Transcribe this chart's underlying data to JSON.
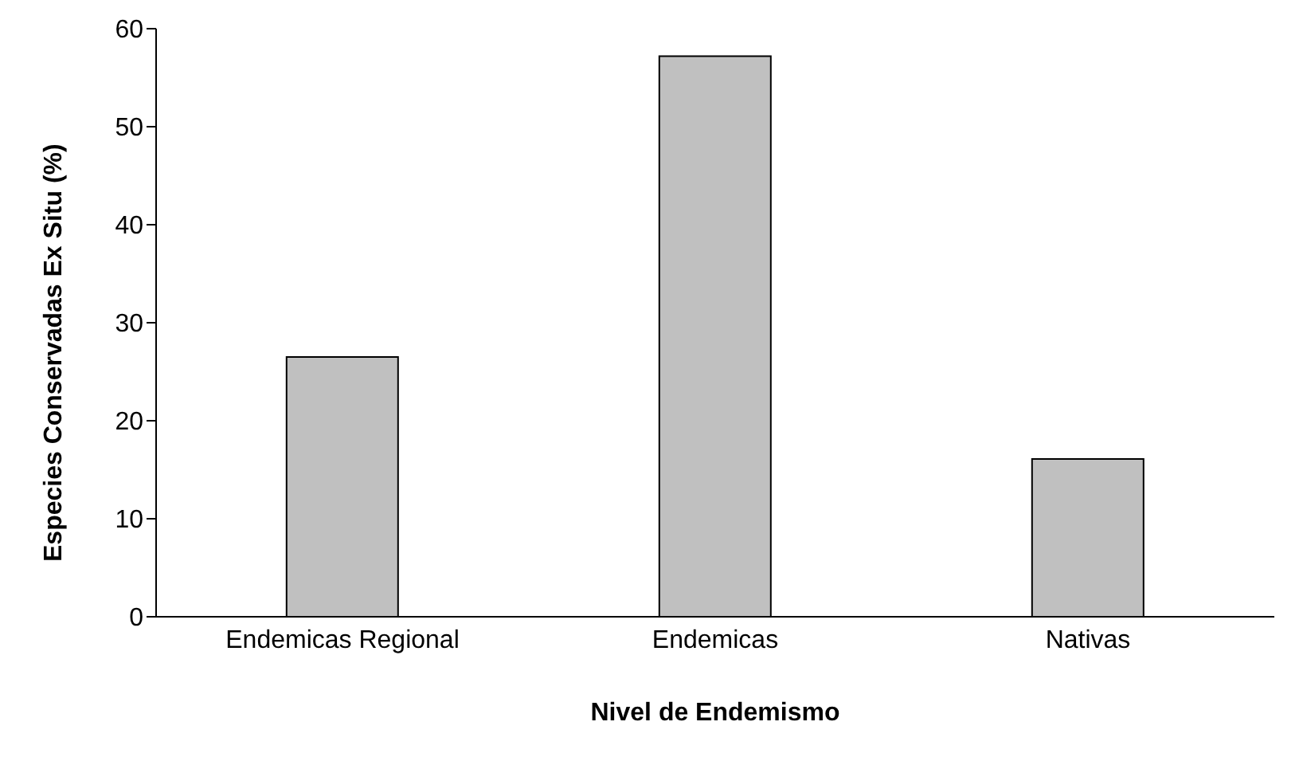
{
  "chart_data": {
    "type": "bar",
    "xlabel": "Nivel de Endemismo",
    "ylabel": "Especies Conservadas Ex Situ (%)",
    "categories": [
      "Endemicas Regional",
      "Endemicas",
      "Nativas"
    ],
    "values": [
      26.5,
      57.2,
      16.1
    ],
    "color": "#c0c0c0",
    "ylim": [
      0,
      60
    ],
    "yticks": [
      0,
      10,
      20,
      30,
      40,
      50,
      60
    ],
    "grid": false,
    "legend": false
  }
}
